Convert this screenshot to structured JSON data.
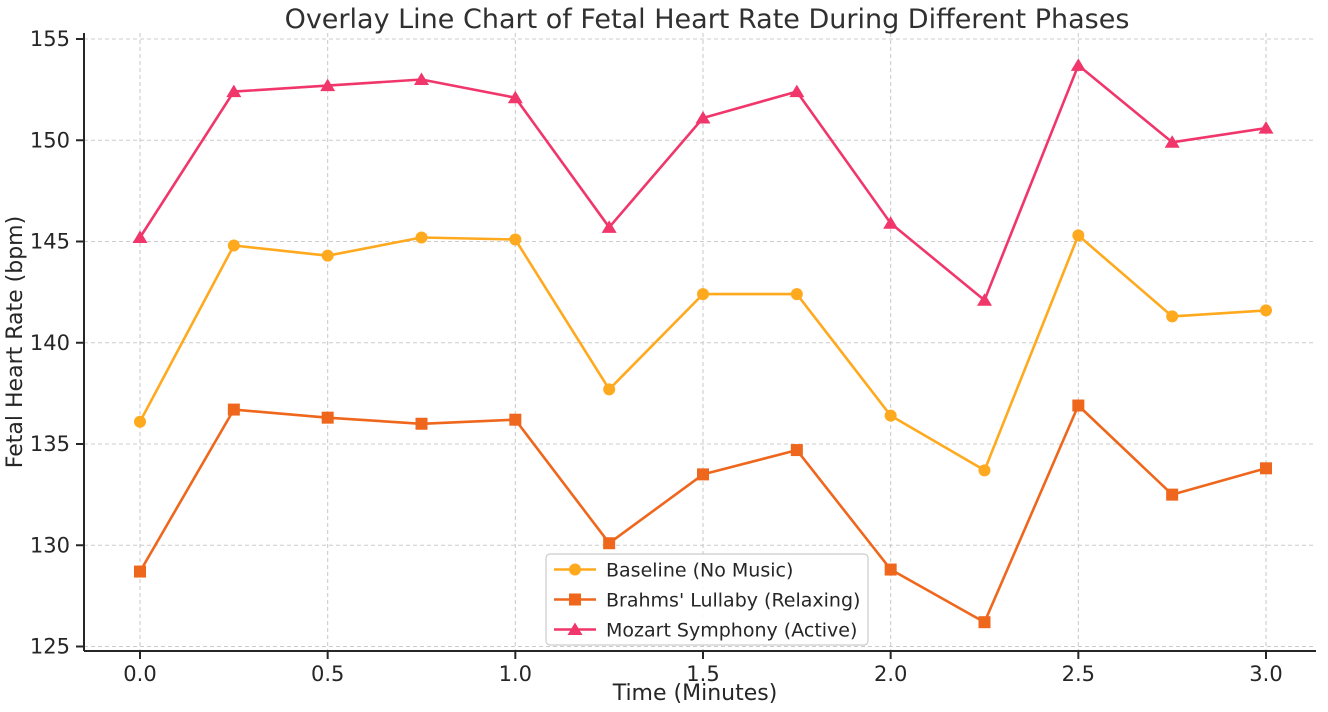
{
  "chart_data": {
    "type": "line",
    "title": "Overlay Line Chart of Fetal Heart Rate During Different Phases",
    "xlabel": "Time (Minutes)",
    "ylabel": "Fetal Heart Rate (bpm)",
    "x": [
      0.0,
      0.25,
      0.5,
      0.75,
      1.0,
      1.25,
      1.5,
      1.75,
      2.0,
      2.25,
      2.5,
      2.75,
      3.0
    ],
    "series": [
      {
        "name": "Baseline (No Music)",
        "marker": "circle",
        "color": "#FFA91E",
        "values": [
          136.1,
          144.8,
          144.3,
          145.2,
          145.1,
          137.7,
          142.4,
          142.4,
          136.4,
          133.7,
          145.3,
          141.3,
          141.6
        ]
      },
      {
        "name": "Brahms' Lullaby (Relaxing)",
        "marker": "square",
        "color": "#EE671D",
        "values": [
          128.7,
          136.7,
          136.3,
          136.0,
          136.2,
          130.1,
          133.5,
          134.7,
          128.8,
          126.2,
          136.9,
          132.5,
          133.8
        ]
      },
      {
        "name": "Mozart Symphony (Active)",
        "marker": "triangle",
        "color": "#F0366B",
        "values": [
          145.2,
          152.4,
          152.7,
          153.0,
          152.1,
          145.7,
          151.1,
          152.4,
          145.9,
          142.1,
          153.7,
          149.9,
          150.6
        ]
      }
    ],
    "xticks": {
      "values": [
        0.0,
        0.5,
        1.0,
        1.5,
        2.0,
        2.5,
        3.0
      ],
      "labels": [
        "0.0",
        "0.5",
        "1.0",
        "1.5",
        "2.0",
        "2.5",
        "3.0"
      ]
    },
    "yticks": {
      "values": [
        125,
        130,
        135,
        140,
        145,
        150,
        155
      ],
      "labels": [
        "125",
        "130",
        "135",
        "140",
        "145",
        "150",
        "155"
      ]
    },
    "xlim": [
      -0.15,
      3.13
    ],
    "ylim": [
      124.8,
      155.3
    ],
    "grid": "dashed-both",
    "legend_position": "lower-center",
    "grid_color": "#cccccc",
    "spine_color": "#262626",
    "background": "#ffffff"
  }
}
